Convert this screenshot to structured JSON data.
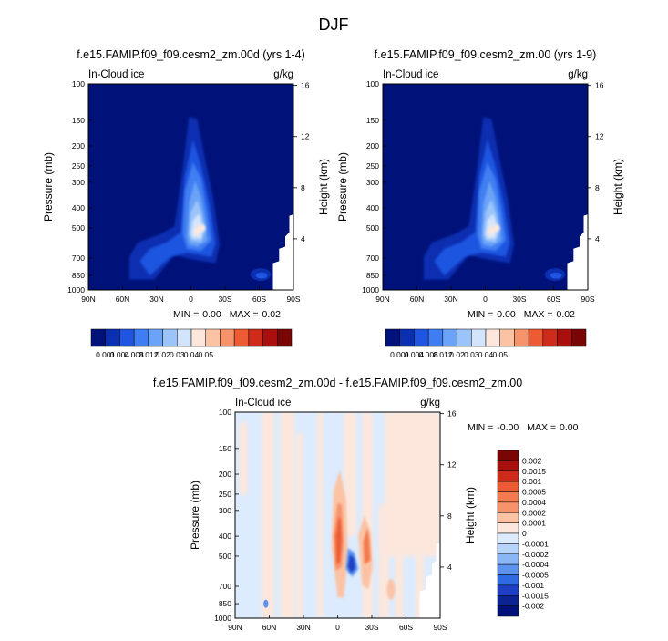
{
  "figure": {
    "title": "DJF"
  },
  "chart_data": [
    {
      "type": "heatmap",
      "title": "f.e15.FAMIP.f09_f09.cesm2_zm.00d (yrs 1-4)",
      "field": "In-Cloud ice",
      "units": "g/kg",
      "xlabel": "",
      "ylabel": "Pressure (mb)",
      "y2label": "Height (km)",
      "x_ticks": [
        "90N",
        "60N",
        "30N",
        "0",
        "30S",
        "60S",
        "90S"
      ],
      "y_ticks": [
        "100",
        "150",
        "200",
        "250",
        "300",
        "400",
        "500",
        "700",
        "850",
        "1000"
      ],
      "y2_ticks": [
        "16",
        "12",
        "8",
        "4"
      ],
      "ylim": [
        1000,
        100
      ],
      "xlim": [
        "90N",
        "90S"
      ],
      "stats": {
        "min_label": "MIN =",
        "min": "0.00",
        "max_label": "MAX =",
        "max": "0.02"
      },
      "colorbar": {
        "orientation": "horizontal",
        "levels": [
          "0.001",
          "0.004",
          "0.008",
          "0.012",
          "0.02",
          "0.03",
          "0.04",
          "0.05"
        ],
        "colors": [
          "#00127a",
          "#0a2fb0",
          "#1f55e0",
          "#3f7ef2",
          "#6aa3f7",
          "#9bc4fa",
          "#d3e5fd",
          "#fde7dc",
          "#fbc3a4",
          "#f7936a",
          "#ec5b33",
          "#cf2b1a",
          "#a80f0d",
          "#7a0505"
        ]
      },
      "peak": {
        "lat": "10S",
        "pressure": 500,
        "value": 0.02
      }
    },
    {
      "type": "heatmap",
      "title": "f.e15.FAMIP.f09_f09.cesm2_zm.00 (yrs 1-9)",
      "field": "In-Cloud ice",
      "units": "g/kg",
      "xlabel": "",
      "ylabel": "Pressure (mb)",
      "y2label": "Height (km)",
      "x_ticks": [
        "90N",
        "60N",
        "30N",
        "0",
        "30S",
        "60S",
        "90S"
      ],
      "y_ticks": [
        "100",
        "150",
        "200",
        "250",
        "300",
        "400",
        "500",
        "700",
        "850",
        "1000"
      ],
      "y2_ticks": [
        "16",
        "12",
        "8",
        "4"
      ],
      "ylim": [
        1000,
        100
      ],
      "xlim": [
        "90N",
        "90S"
      ],
      "stats": {
        "min_label": "MIN =",
        "min": "0.00",
        "max_label": "MAX =",
        "max": "0.02"
      },
      "colorbar": {
        "orientation": "horizontal",
        "levels": [
          "0.001",
          "0.004",
          "0.008",
          "0.012",
          "0.02",
          "0.03",
          "0.04",
          "0.05"
        ],
        "colors": [
          "#00127a",
          "#0a2fb0",
          "#1f55e0",
          "#3f7ef2",
          "#6aa3f7",
          "#9bc4fa",
          "#d3e5fd",
          "#fde7dc",
          "#fbc3a4",
          "#f7936a",
          "#ec5b33",
          "#cf2b1a",
          "#a80f0d",
          "#7a0505"
        ]
      },
      "peak": {
        "lat": "10S",
        "pressure": 500,
        "value": 0.02
      }
    },
    {
      "type": "heatmap",
      "title": "f.e15.FAMIP.f09_f09.cesm2_zm.00d - f.e15.FAMIP.f09_f09.cesm2_zm.00",
      "field": "In-Cloud ice",
      "units": "g/kg",
      "xlabel": "",
      "ylabel": "Pressure (mb)",
      "y2label": "Height (km)",
      "x_ticks": [
        "90N",
        "60N",
        "30N",
        "0",
        "30S",
        "60S",
        "90S"
      ],
      "y_ticks": [
        "100",
        "150",
        "200",
        "250",
        "300",
        "400",
        "500",
        "700",
        "850",
        "1000"
      ],
      "y2_ticks": [
        "16",
        "12",
        "8",
        "4"
      ],
      "ylim": [
        1000,
        100
      ],
      "xlim": [
        "90N",
        "90S"
      ],
      "stats": {
        "min_label": "MIN =",
        "min": "-0.00",
        "max_label": "MAX =",
        "max": "0.00"
      },
      "colorbar": {
        "orientation": "vertical",
        "levels": [
          "0.002",
          "0.0015",
          "0.001",
          "0.0005",
          "0.0004",
          "0.0002",
          "0.0001",
          "0",
          "-0.0001",
          "-0.0002",
          "-0.0004",
          "-0.0005",
          "-0.001",
          "-0.0015",
          "-0.002"
        ],
        "colors": [
          "#7a0505",
          "#a80f0d",
          "#cf2b1a",
          "#ec5b33",
          "#f47a4f",
          "#f7936a",
          "#fbc3a4",
          "#fde7dc",
          "#dcebfd",
          "#b7d4fb",
          "#8ab5f6",
          "#5c93ef",
          "#2f6ae4",
          "#1f3fc4",
          "#0c2493",
          "#00127a"
        ]
      }
    }
  ]
}
